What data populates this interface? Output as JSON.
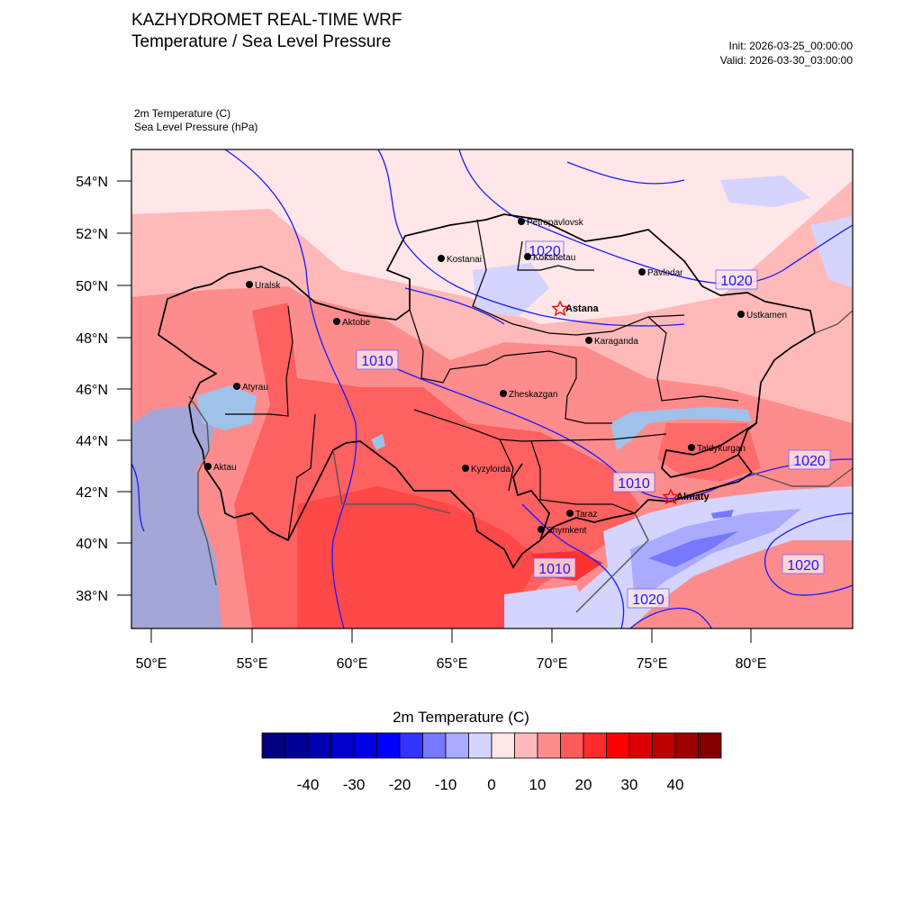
{
  "header": {
    "title_line1": "KAZHYDROMET REAL-TIME WRF",
    "title_line2": "Temperature / Sea Level Pressure",
    "init": "Init: 2026-03-25_00:00:00",
    "valid": "Valid: 2026-03-30_03:00:00",
    "field1": "2m Temperature   (C)",
    "field2": "Sea Level Pressure   (hPa)"
  },
  "map": {
    "lat_labels": [
      "54°N",
      "52°N",
      "50°N",
      "48°N",
      "46°N",
      "44°N",
      "42°N",
      "40°N",
      "38°N"
    ],
    "lon_labels": [
      "50°E",
      "55°E",
      "60°E",
      "65°E",
      "70°E",
      "75°E",
      "80°E"
    ],
    "cities": [
      {
        "name": "Petropavlovsk",
        "capital": false
      },
      {
        "name": "Kostanai",
        "capital": false
      },
      {
        "name": "Kokshetau",
        "capital": false
      },
      {
        "name": "Pavlodar",
        "capital": false
      },
      {
        "name": "Uralsk",
        "capital": false
      },
      {
        "name": "Aktobe",
        "capital": false
      },
      {
        "name": "Astana",
        "capital": true
      },
      {
        "name": "Ustkamen",
        "capital": false
      },
      {
        "name": "Karaganda",
        "capital": false
      },
      {
        "name": "Atyrau",
        "capital": false
      },
      {
        "name": "Zheskazgan",
        "capital": false
      },
      {
        "name": "Taldykurgan",
        "capital": false
      },
      {
        "name": "Aktau",
        "capital": false
      },
      {
        "name": "Kyzylorda",
        "capital": false
      },
      {
        "name": "Almaty",
        "capital": true
      },
      {
        "name": "Taraz",
        "capital": false
      },
      {
        "name": "Shymkent",
        "capital": false
      }
    ],
    "isobar_labels": [
      "1020",
      "1020",
      "1010",
      "1010",
      "1020",
      "1010",
      "1020",
      "1020"
    ],
    "colors": {
      "isobar": "#1a1aff",
      "border": "#000000",
      "sea": "#a3a6d6",
      "lake": "#9fc2ea"
    }
  },
  "colorbar": {
    "title": "2m Temperature  (C)",
    "colors": [
      "#000080",
      "#000096",
      "#0000b0",
      "#0000cc",
      "#0000e6",
      "#0000ff",
      "#3333ff",
      "#7777ff",
      "#aaaaff",
      "#d4d4ff",
      "#ffe6e8",
      "#ffb9b9",
      "#ff8c8c",
      "#ff5a5a",
      "#ff2a2a",
      "#ff0000",
      "#dc0000",
      "#bb0000",
      "#9e0000",
      "#800000"
    ],
    "tick_labels": [
      "-40",
      "-30",
      "-20",
      "-10",
      "0",
      "10",
      "20",
      "30",
      "40"
    ]
  }
}
